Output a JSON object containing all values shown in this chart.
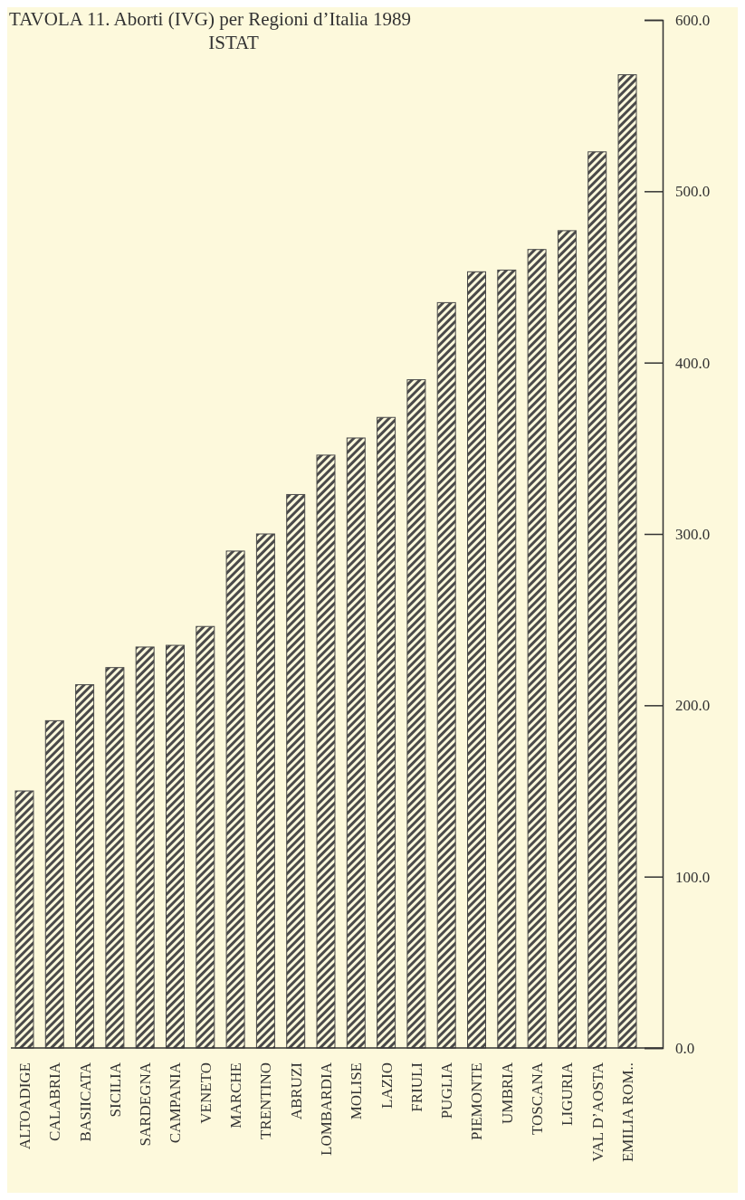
{
  "chart_data": {
    "type": "bar",
    "title": "TAVOLA 11. Aborti (IVG) per Regioni d’Italia 1989",
    "subtitle": "ISTAT",
    "categories": [
      "ALTOADIGE",
      "CALABRIA",
      "BASIICATA",
      "SICILIA",
      "SARDEGNA",
      "CAMPANIA",
      "VENETO",
      "MARCHE",
      "TRENTINO",
      "ABRUZI",
      "LOMBARDIA",
      "MOLISE",
      "LAZIO",
      "FRIULI",
      "PUGLIA",
      "PIEMONTE",
      "UMBRIA",
      "TOSCANA",
      "LIGURIA",
      "VAL D’AOSTA",
      "EMILIA ROM.."
    ],
    "values": [
      150,
      191,
      212,
      222,
      234,
      235,
      246,
      290,
      300,
      323,
      346,
      356,
      368,
      390,
      435,
      453,
      454,
      466,
      477,
      523,
      568
    ],
    "color": "#4a4a4a",
    "ylim": [
      0,
      600
    ],
    "yticks": [
      {
        "value": 0,
        "label": "0.0"
      },
      {
        "value": 100,
        "label": "100.0"
      },
      {
        "value": 200,
        "label": "200.0"
      },
      {
        "value": 300,
        "label": "300.0"
      },
      {
        "value": 400,
        "label": "400.0"
      },
      {
        "value": 500,
        "label": "500.0"
      },
      {
        "value": 600,
        "label": "600.0"
      }
    ],
    "grid": false
  }
}
